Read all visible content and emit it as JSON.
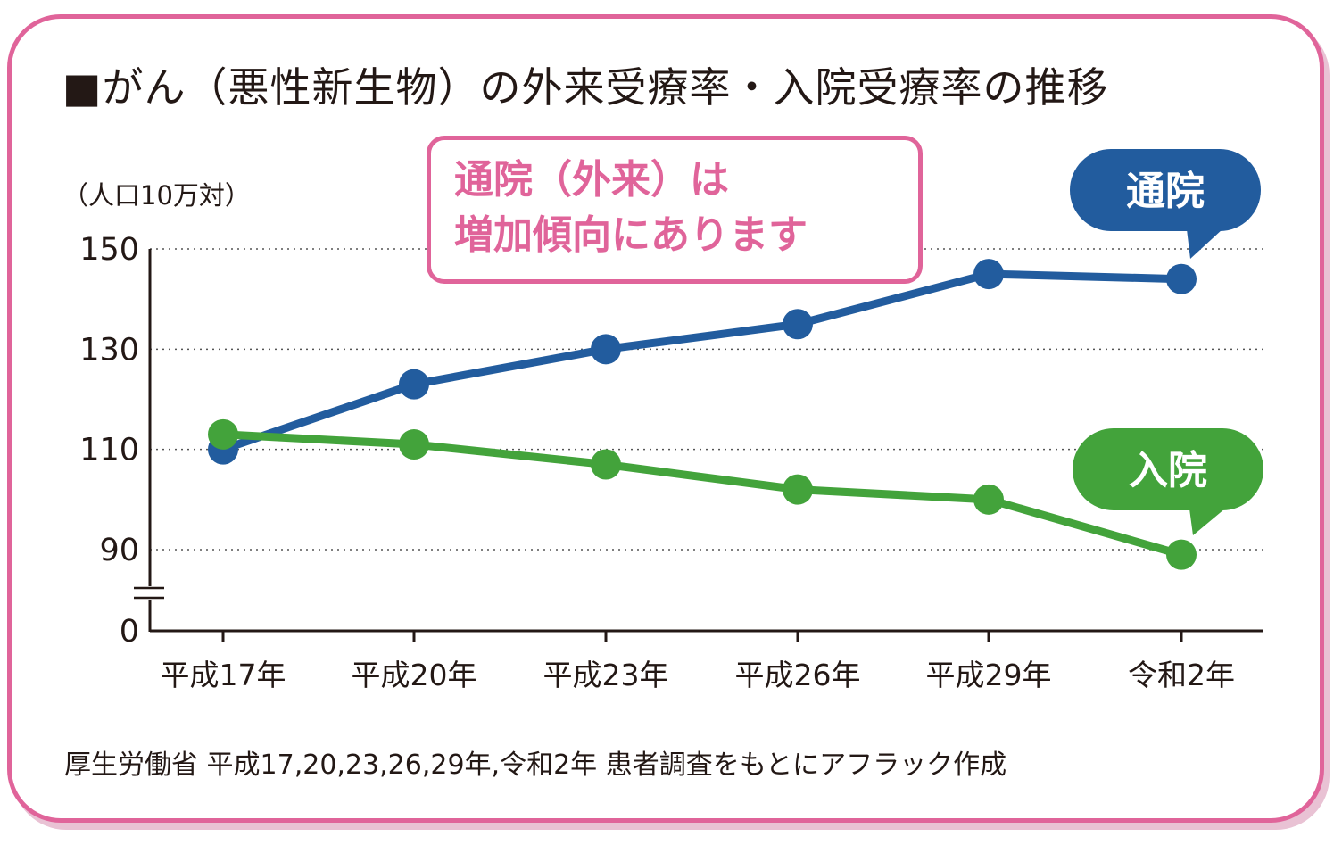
{
  "title": "■がん（悪性新生物）の外来受療率・入院受療率の推移",
  "callout": "通院（外来）は\n増加傾向にあります",
  "source": "厚生労働省 平成17,20,23,26,29年,令和2年 患者調査をもとにアフラック作成",
  "colors": {
    "frame": "#e0649a",
    "outpatient": "#225c9e",
    "inpatient": "#43a33b",
    "text": "#231815"
  },
  "chart_data": {
    "type": "line",
    "title": "■がん（悪性新生物）の外来受療率・入院受療率の推移",
    "ylabel": "（人口10万対）",
    "xlabel": "",
    "categories": [
      "平成17年",
      "平成20年",
      "平成23年",
      "平成26年",
      "平成29年",
      "令和2年"
    ],
    "y_ticks": [
      0,
      90,
      110,
      130,
      150
    ],
    "ylim": [
      80,
      150
    ],
    "axis_break": true,
    "grid": "horizontal-dotted",
    "series": [
      {
        "name": "通院",
        "color": "#225c9e",
        "values": [
          110,
          123,
          130,
          135,
          145,
          144
        ]
      },
      {
        "name": "入院",
        "color": "#43a33b",
        "values": [
          113,
          111,
          107,
          102,
          100,
          89
        ]
      }
    ]
  }
}
